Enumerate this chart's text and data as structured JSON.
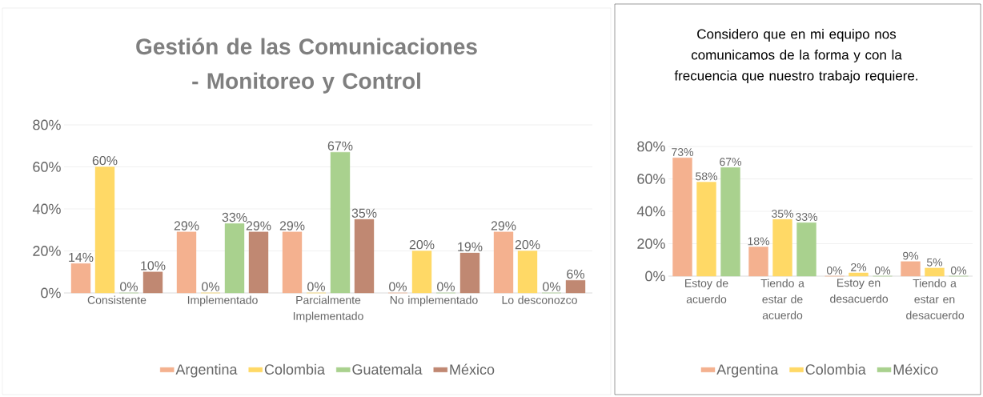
{
  "chart_data": [
    {
      "type": "bar",
      "title": "Gestión de las Comunicaciones - Monitoreo y Control",
      "categories": [
        "Consistente",
        "Implementado",
        "Parcialmente Implementado",
        "No implementado",
        "Lo desconozco"
      ],
      "series": [
        {
          "name": "Argentina",
          "color": "#f4b18f",
          "values": [
            14,
            29,
            29,
            0,
            29
          ],
          "value_labels": [
            "14%",
            "29%",
            "29%",
            "0%",
            "29%"
          ]
        },
        {
          "name": "Colombia",
          "color": "#ffd966",
          "values": [
            60,
            0,
            0,
            20,
            20
          ],
          "value_labels": [
            "60%",
            "0%",
            "0%",
            "20%",
            "20%"
          ]
        },
        {
          "name": "Guatemala",
          "color": "#a9d18e",
          "values": [
            0,
            33,
            67,
            0,
            0
          ],
          "value_labels": [
            "0%",
            "33%",
            "67%",
            "0%",
            "0%"
          ]
        },
        {
          "name": "México",
          "color": "#c08872",
          "values": [
            10,
            29,
            35,
            19,
            6
          ],
          "value_labels": [
            "10%",
            "29%",
            "35%",
            "19%",
            "6%"
          ]
        }
      ],
      "ylim": [
        0,
        80
      ],
      "yticks": [
        {
          "value": 0,
          "label": "0%"
        },
        {
          "value": 20,
          "label": "20%"
        },
        {
          "value": 40,
          "label": "40%"
        },
        {
          "value": 60,
          "label": "60%"
        },
        {
          "value": 80,
          "label": "80%"
        }
      ],
      "grid": "y",
      "legend": "bottom"
    },
    {
      "type": "bar",
      "title": "Considero que en mi equipo nos comunicamos de la forma y con la frecuencia que nuestro trabajo requiere.",
      "categories": [
        "Estoy de acuerdo",
        "Tiendo a estar de acuerdo",
        "Estoy en desacuerdo",
        "Tiendo a estar en desacuerdo"
      ],
      "series": [
        {
          "name": "Argentina",
          "color": "#f4b18f",
          "values": [
            73,
            18,
            0,
            9
          ],
          "value_labels": [
            "73%",
            "18%",
            "0%",
            "9%"
          ]
        },
        {
          "name": "Colombia",
          "color": "#ffd966",
          "values": [
            58,
            35,
            2,
            5
          ],
          "value_labels": [
            "58%",
            "35%",
            "2%",
            "5%"
          ]
        },
        {
          "name": "México",
          "color": "#a9d18e",
          "values": [
            67,
            33,
            0,
            0
          ],
          "value_labels": [
            "67%",
            "33%",
            "0%",
            "0%"
          ]
        }
      ],
      "ylim": [
        0,
        80
      ],
      "yticks": [
        {
          "value": 0,
          "label": "0%"
        },
        {
          "value": 20,
          "label": "20%"
        },
        {
          "value": 40,
          "label": "40%"
        },
        {
          "value": 60,
          "label": "60%"
        },
        {
          "value": 80,
          "label": "80%"
        }
      ],
      "grid": "y",
      "legend": "bottom"
    }
  ]
}
